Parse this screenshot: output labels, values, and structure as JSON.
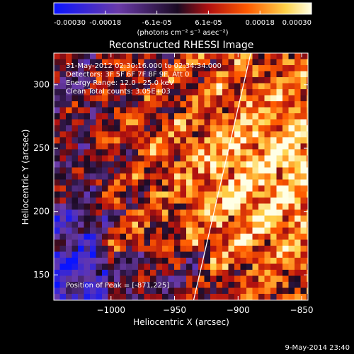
{
  "chart_data": {
    "type": "heatmap",
    "title": "Reconstructed RHESSI Image",
    "xlabel": "Heliocentric X (arcsec)",
    "ylabel": "Heliocentric Y (arcsec)",
    "xlim": [
      -1045,
      -845
    ],
    "ylim": [
      130,
      325
    ],
    "xticks": [
      -1000,
      -950,
      -900,
      -850
    ],
    "xtick_labels": [
      "−1000",
      "−950",
      "−900",
      "−850"
    ],
    "yticks": [
      150,
      200,
      250,
      300
    ],
    "ytick_labels": [
      "150",
      "200",
      "250",
      "300"
    ],
    "colorbar": {
      "range": [
        -0.0003,
        0.0003
      ],
      "tick_labels": [
        "-0.00030",
        "-0.00018",
        "-6.1e-05",
        "6.1e-05",
        "0.00018",
        "0.00030"
      ],
      "unit_label": "(photons cm⁻² s⁻¹ asec⁻²)",
      "colormap": "blue-purple-black-red-orange-yellow-white"
    },
    "annotations": [
      "31-May-2012 02:30:16.000 to 02:34:34.000",
      "Detectors: 3F 5F 6F 7F 8F 9F, Att 0",
      "Energy Range: 12.0 - 25.0 keV",
      "Clean    Total counts: 3.05E+03"
    ],
    "peak_label": "Position of Peak = [-871,225]",
    "limb_line": {
      "x": [
        -935,
        -890
      ],
      "y": [
        130,
        325
      ]
    }
  },
  "footer": {
    "timestamp": "9-May-2014 23:40"
  },
  "colors": {
    "background": "#000000",
    "cmap": [
      "#0a14ff",
      "#6a3aa8",
      "#1a0a22",
      "#b01010",
      "#ff5a00",
      "#ffd24a",
      "#ffffe6"
    ]
  }
}
